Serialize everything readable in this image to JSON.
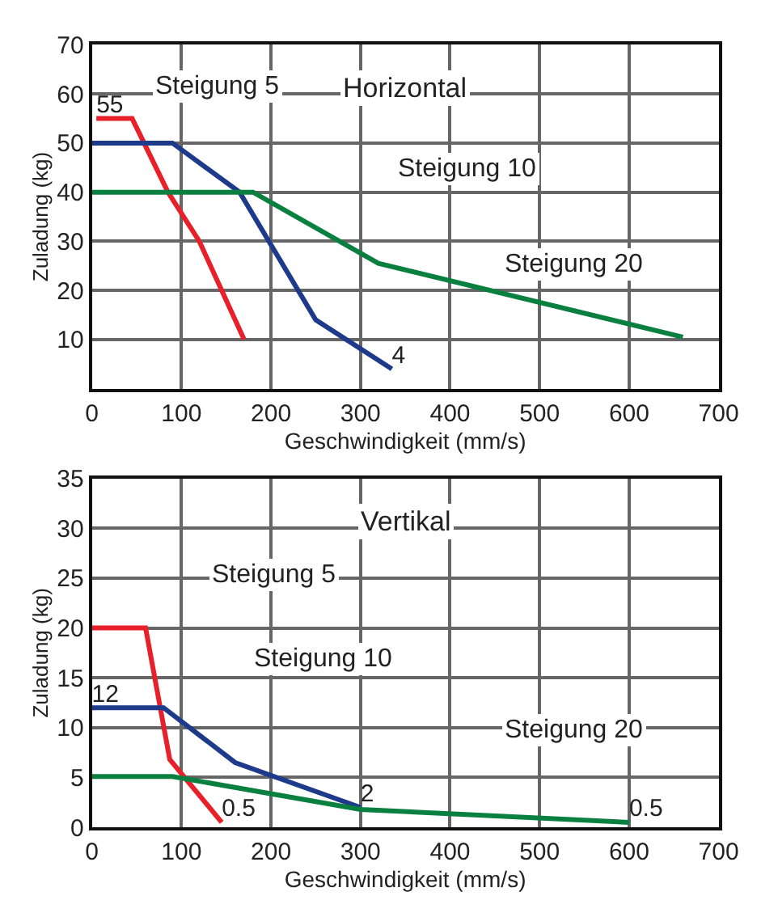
{
  "chart_data": [
    {
      "type": "line",
      "title": "Horizontal",
      "xlabel": "Geschwindigkeit (mm/s)",
      "ylabel": "Zuladung (kg)",
      "xlim": [
        0,
        700
      ],
      "ylim": [
        0,
        70
      ],
      "xticks": [
        0,
        100,
        200,
        300,
        400,
        500,
        600,
        700
      ],
      "yticks": [
        10,
        20,
        30,
        40,
        50,
        60,
        70
      ],
      "grid": true,
      "marker": "none",
      "line_style": "solid",
      "series": [
        {
          "color": "#e8202a",
          "x": [
            5,
            45,
            85,
            120,
            170
          ],
          "values": [
            55,
            55,
            40,
            30,
            10
          ],
          "value_labels": [
            "55",
            null,
            null,
            null,
            null
          ]
        },
        {
          "color": "#1e3a8a",
          "x": [
            0,
            90,
            165,
            250,
            335
          ],
          "values": [
            50,
            50,
            40,
            14,
            4
          ],
          "value_labels": [
            null,
            null,
            null,
            null,
            "4"
          ]
        },
        {
          "color": "#0a8040",
          "x": [
            0,
            180,
            320,
            660
          ],
          "values": [
            40,
            40,
            25.5,
            10.5
          ]
        }
      ],
      "annotations": [
        "Steigung 5",
        "Steigung 10",
        "Steigung 20"
      ]
    },
    {
      "type": "line",
      "title": "Vertikal",
      "xlabel": "Geschwindigkeit (mm/s)",
      "ylabel": "Zuladung (kg)",
      "xlim": [
        0,
        700
      ],
      "ylim": [
        0,
        35
      ],
      "xticks": [
        0,
        100,
        200,
        300,
        400,
        500,
        600,
        700
      ],
      "yticks": [
        0,
        5,
        10,
        15,
        20,
        25,
        30,
        35
      ],
      "grid": true,
      "marker": "none",
      "line_style": "solid",
      "series": [
        {
          "color": "#e8202a",
          "x": [
            0,
            60,
            87,
            145
          ],
          "values": [
            20,
            20,
            6.8,
            0.5
          ],
          "value_labels": [
            null,
            null,
            null,
            "0.5"
          ]
        },
        {
          "color": "#1e3a8a",
          "x": [
            0,
            80,
            160,
            300
          ],
          "values": [
            12,
            12,
            6.5,
            2
          ],
          "value_labels": [
            "12",
            null,
            null,
            "2"
          ]
        },
        {
          "color": "#0a8040",
          "x": [
            0,
            90,
            300,
            600
          ],
          "values": [
            5.1,
            5.1,
            1.8,
            0.5
          ],
          "value_labels": [
            null,
            null,
            null,
            "0.5"
          ]
        }
      ],
      "annotations": [
        "Steigung 5",
        "Steigung 10",
        "Steigung 20"
      ]
    }
  ]
}
